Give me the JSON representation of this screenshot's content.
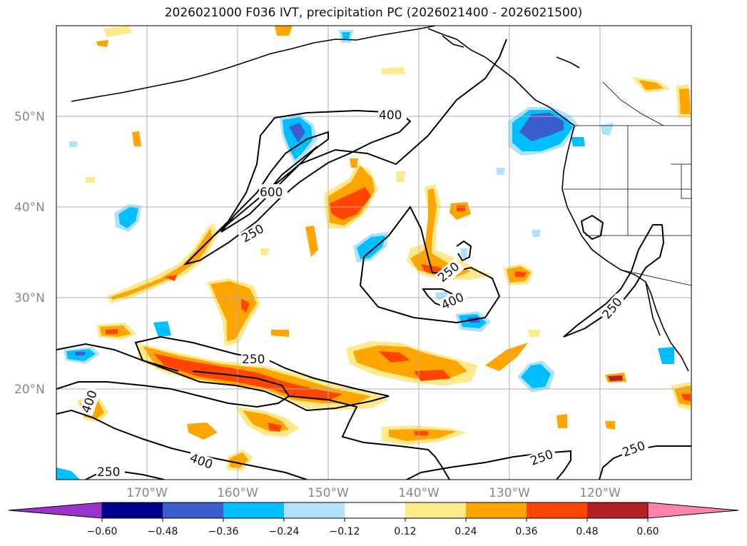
{
  "title": "2026021000 F036 IVT, precipitation PC (2026021400 - 2026021500)",
  "latitude_labels": [
    "50°N",
    "40°N",
    "30°N",
    "20°N"
  ],
  "longitude_labels": [
    "170°W",
    "160°W",
    "150°W",
    "140°W",
    "130°W",
    "120°W"
  ],
  "colorbar": {
    "ticks": [
      "−0.60",
      "−0.48",
      "−0.36",
      "−0.24",
      "−0.12",
      "0.12",
      "0.24",
      "0.36",
      "0.48",
      "0.60"
    ],
    "colors": [
      "#9933cc",
      "#00008b",
      "#3a5fcd",
      "#00bfff",
      "#b0e2ff",
      "#ffffff",
      "#ffe98a",
      "#ffa500",
      "#ff4500",
      "#b22222",
      "#ff82ab"
    ]
  },
  "contour_labels": [
    "400",
    "600",
    "250",
    "250",
    "400",
    "250",
    "250",
    "400",
    "250",
    "400",
    "250",
    "250"
  ],
  "colors": {
    "coast": "#000000",
    "grid": "#b0b0b0",
    "contour": "#000000"
  }
}
